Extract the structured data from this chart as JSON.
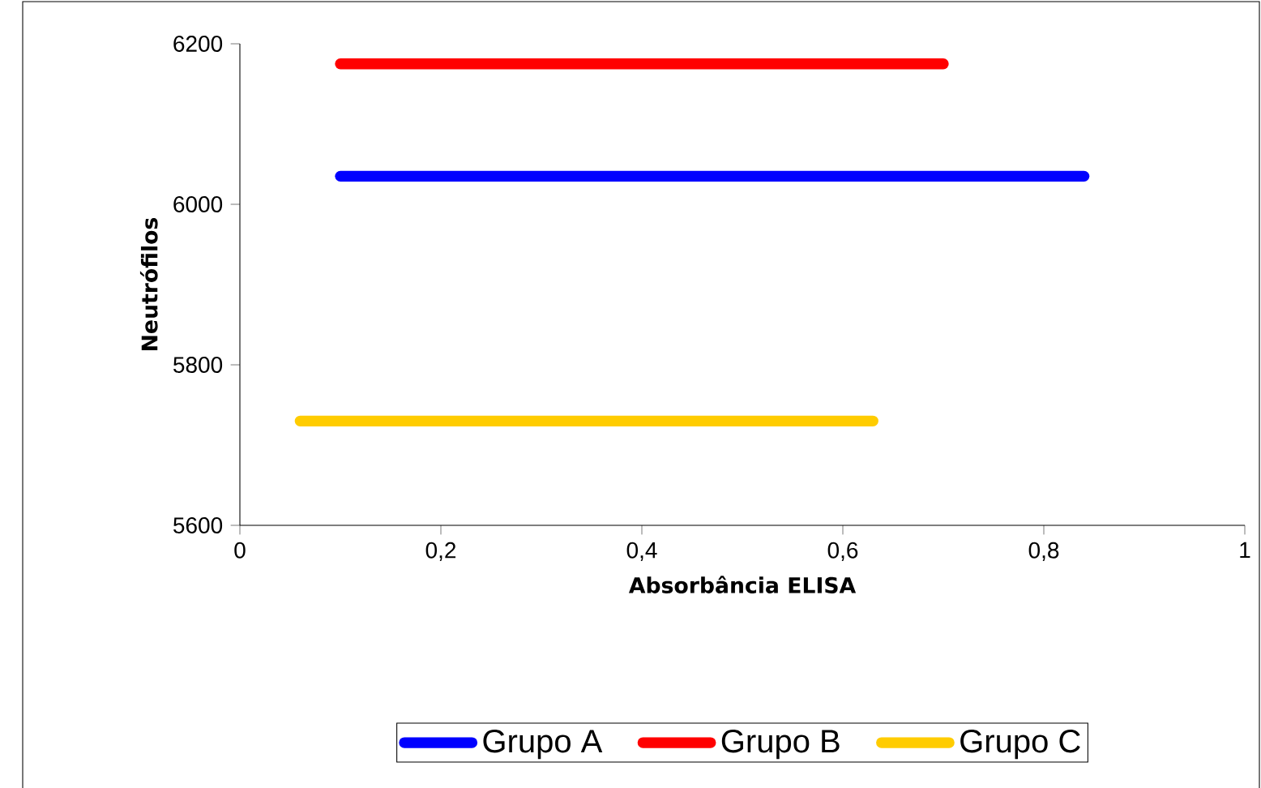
{
  "chart_data": {
    "type": "line",
    "xlabel": "Absorbância ELISA",
    "ylabel": "Neutrófilos",
    "xlim": [
      0,
      1
    ],
    "xticks": [
      0,
      {
        "value": 0.2,
        "label": "0,2"
      },
      {
        "value": 0.4,
        "label": "0,4"
      },
      {
        "value": 0.6,
        "label": "0,6"
      },
      {
        "value": 0.8,
        "label": "0,8"
      },
      1
    ],
    "ylim": [
      5600,
      6200
    ],
    "yticks": [
      5600,
      5800,
      6000,
      6200
    ],
    "legend": "bottom",
    "grid": false,
    "marker": "none",
    "line_style": "solid",
    "series": [
      {
        "name": "Grupo A",
        "color": "#0000ff",
        "x": [
          0.1,
          0.84
        ],
        "values": [
          6035,
          6035
        ]
      },
      {
        "name": "Grupo B",
        "color": "#ff0000",
        "x": [
          0.1,
          0.7
        ],
        "values": [
          6175,
          6175
        ]
      },
      {
        "name": "Grupo C",
        "color": "#ffcc00",
        "x": [
          0.06,
          0.63
        ],
        "values": [
          5730,
          5730
        ]
      }
    ]
  }
}
